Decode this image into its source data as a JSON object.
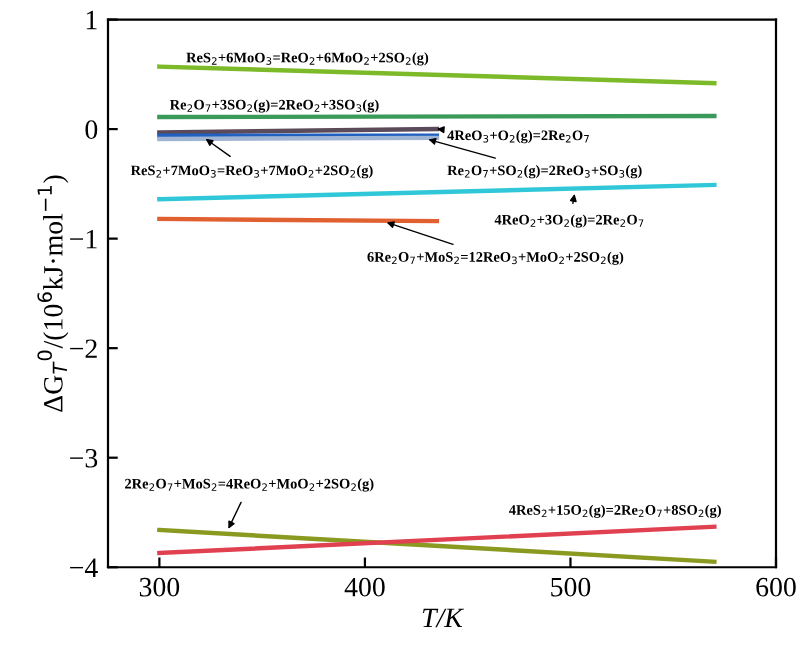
{
  "chart_data": {
    "type": "line",
    "xlabel": "T/K",
    "ylabel": "ΔG$_{T}$$^{0}$/(10$^{6}$kJ·mol$^{−1}$)",
    "xlim": [
      275,
      600
    ],
    "ylim": [
      -4,
      1
    ],
    "xticks": [
      300,
      400,
      500,
      600
    ],
    "yticks": [
      -4,
      -3,
      -2,
      -1,
      0,
      1
    ],
    "grid": false,
    "legend": false,
    "marker": "none",
    "line_style": "solid",
    "series": [
      {
        "name": "ReS$_{2}$+6MoO$_{3}$=ReO$_{2}$+6MoO$_{2}$+2SO$_{2}$(g)",
        "color": "#7dba2a",
        "x": [
          300,
          570
        ],
        "values": [
          0.57,
          0.42
        ]
      },
      {
        "name": "Re$_{2}$O$_{7}$+3SO$_{2}$(g)=2ReO$_{2}$+3SO$_{3}$(g)",
        "color": "#3a9a5a",
        "x": [
          300,
          570
        ],
        "values": [
          0.11,
          0.12
        ]
      },
      {
        "name": "4ReO$_{3}$+O$_{2}$(g)=2Re$_{2}$O$_{7}$",
        "color": "#5a4a5a",
        "x": [
          300,
          435
        ],
        "values": [
          -0.03,
          0.0
        ]
      },
      {
        "name": "ReS$_{2}$+7MoO$_{3}$=ReO$_{3}$+7MoO$_{2}$+2SO$_{2}$(g)",
        "color": "#2060c0",
        "x": [
          300,
          435
        ],
        "values": [
          -0.06,
          -0.06
        ]
      },
      {
        "name": "Re$_{2}$O$_{7}$+SO$_{2}$(g)=2ReO$_{3}$+SO$_{3}$(g)",
        "color": "#a0b4d4",
        "x": [
          300,
          435
        ],
        "values": [
          -0.09,
          -0.08
        ]
      },
      {
        "name": "4ReO$_{2}$+3O$_{2}$(g)=2Re$_{2}$O$_{7}$",
        "color": "#30c8d8",
        "x": [
          300,
          570
        ],
        "values": [
          -0.64,
          -0.51
        ]
      },
      {
        "name": "6Re$_{2}$O$_{7}$+MoS$_{2}$=12ReO$_{3}$+MoO$_{2}$+2SO$_{2}$(g)",
        "color": "#e06030",
        "x": [
          300,
          435
        ],
        "values": [
          -0.82,
          -0.84
        ]
      },
      {
        "name": "2Re$_{2}$O$_{7}$+MoS$_{2}$=4ReO$_{2}$+MoO$_{2}$+2SO$_{2}$(g)",
        "color": "#8a9a20",
        "x": [
          300,
          570
        ],
        "values": [
          -3.66,
          -3.95
        ]
      },
      {
        "name": "4ReS$_{2}$+15O$_{2}$(g)=2Re$_{2}$O$_{7}$+8SO$_{2}$(g)",
        "color": "#e04050",
        "x": [
          300,
          570
        ],
        "values": [
          -3.87,
          -3.63
        ]
      }
    ]
  }
}
